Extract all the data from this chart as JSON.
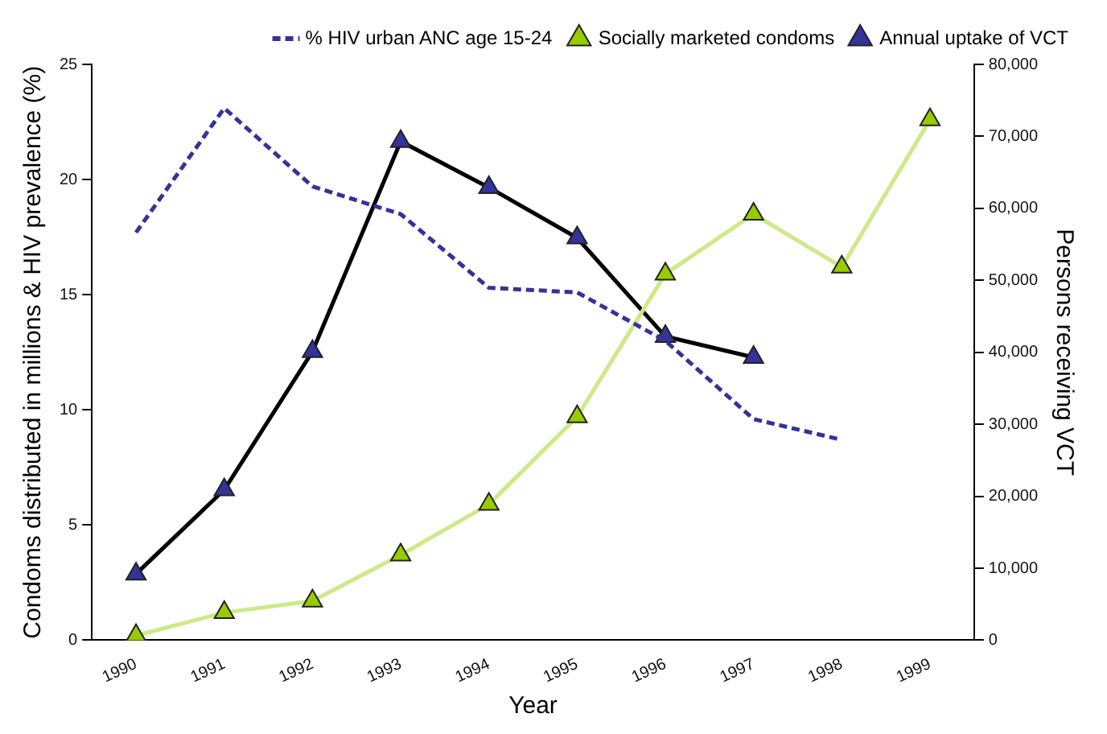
{
  "chart_data": {
    "type": "line",
    "xlabel": "Year",
    "ylabel": "Condoms distributed in millions & HIV prevalence (%)",
    "y2label": "Persons receiving VCT",
    "categories": [
      "1990",
      "1991",
      "1992",
      "1993",
      "1994",
      "1995",
      "1996",
      "1997",
      "1998",
      "1999"
    ],
    "series": [
      {
        "name": "% HIV urban ANC age 15-24",
        "color": "#333399",
        "line_style": "dashed",
        "marker": "none",
        "values": [
          17.7,
          23.1,
          19.7,
          18.5,
          15.3,
          15.1,
          13.0,
          9.6,
          8.7,
          null
        ]
      },
      {
        "name": "Socially marketed condoms",
        "color": "#ccea88",
        "colors": [
          "#99cc00",
          "#99cc00",
          "#99cc00",
          "#99cc00",
          "#99cc00",
          "#99cc00",
          "#99cc00",
          "#99cc00",
          "#99cc00",
          "#99cc00"
        ],
        "line_style": "solid",
        "marker": "triangle",
        "values": [
          0.2,
          1.2,
          1.7,
          3.7,
          5.9,
          9.7,
          15.9,
          18.5,
          16.2,
          22.6
        ]
      },
      {
        "name": "Annual uptake of VCT",
        "color": "#000000",
        "colors": [
          "#333399",
          "#333399",
          "#333399",
          "#333399",
          "#333399",
          "#333399",
          "#333399",
          "#333399",
          "#333399",
          "#333399"
        ],
        "line_style": "solid",
        "marker": "triangle",
        "axis": "y2",
        "values": [
          9200,
          20900,
          40100,
          69300,
          62900,
          55900,
          42200,
          39300,
          null,
          null
        ]
      }
    ],
    "ylim": [
      0,
      25
    ],
    "yticks": [
      0,
      5,
      10,
      15,
      20,
      25
    ],
    "y2lim": [
      0,
      80000
    ],
    "y2ticks": [
      {
        "value": 0,
        "label": "0"
      },
      {
        "value": 10000,
        "label": "10,000"
      },
      {
        "value": 20000,
        "label": "20,000"
      },
      {
        "value": 30000,
        "label": "30,000"
      },
      {
        "value": 40000,
        "label": "40,000"
      },
      {
        "value": 50000,
        "label": "50,000"
      },
      {
        "value": 60000,
        "label": "60,000"
      },
      {
        "value": 70000,
        "label": "70,000"
      },
      {
        "value": 80000,
        "label": "80,000"
      }
    ],
    "grid": false,
    "legend": "top right"
  }
}
